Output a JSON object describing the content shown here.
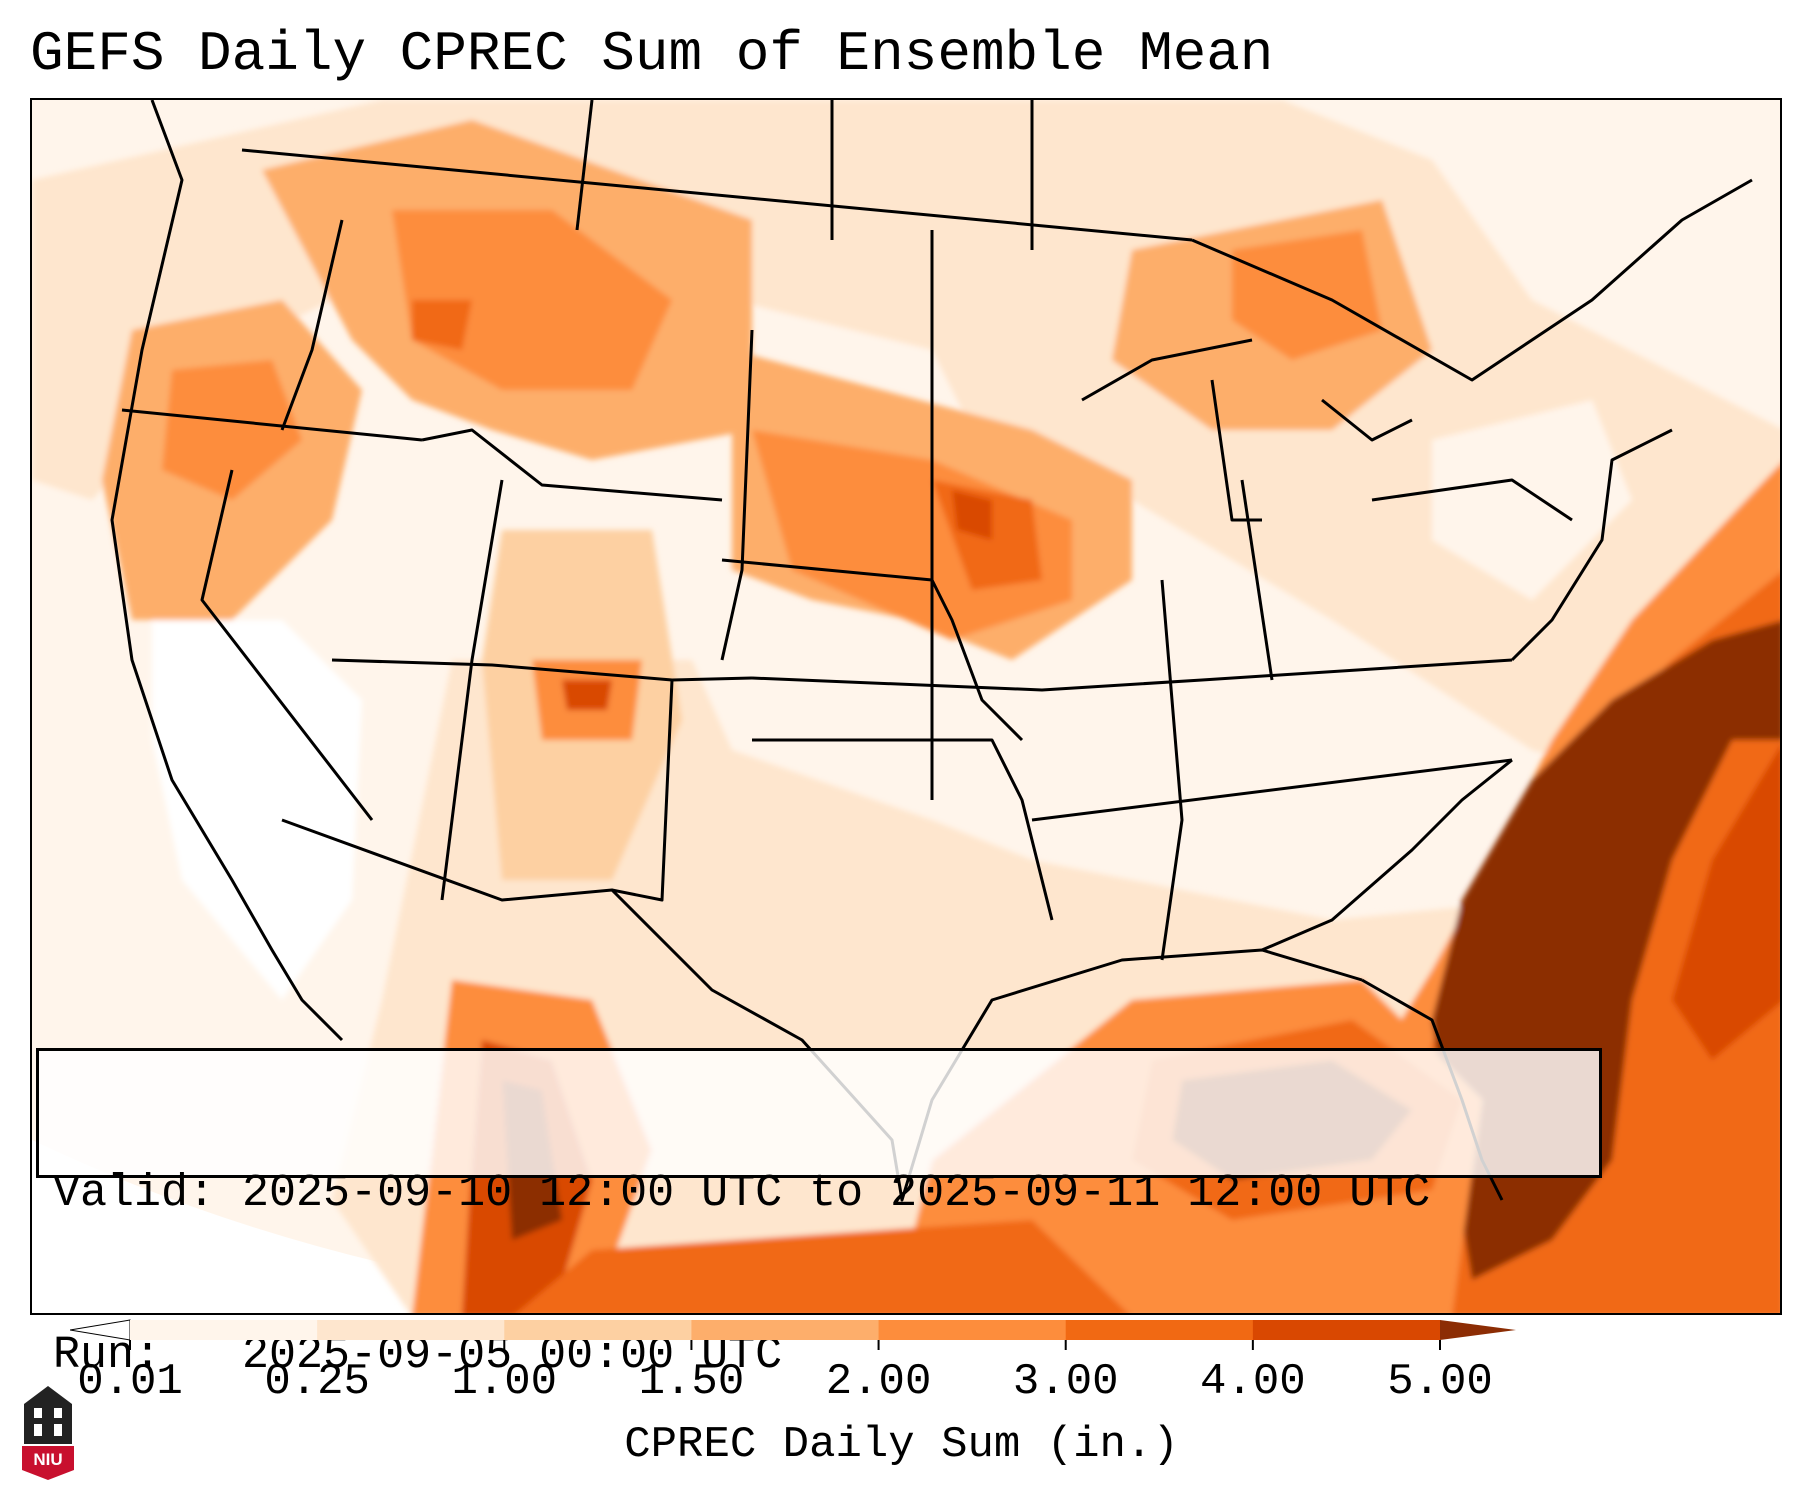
{
  "title": "GEFS Daily CPREC Sum of Ensemble Mean",
  "info": {
    "valid_label": "Valid:",
    "valid_value": "2025-09-10 12:00 UTC to 2025-09-11 12:00 UTC",
    "run_label": "Run:",
    "run_value": "2025-09-05 00:00 UTC"
  },
  "colorbar": {
    "label": "CPREC Daily Sum (in.)",
    "ticks": [
      "0.01",
      "0.25",
      "1.00",
      "1.50",
      "2.00",
      "3.00",
      "4.00",
      "5.00"
    ],
    "bins": [
      {
        "from": 0.01,
        "to": 0.25,
        "color": "#fff5eb"
      },
      {
        "from": 0.25,
        "to": 1.0,
        "color": "#fee6ce"
      },
      {
        "from": 1.0,
        "to": 1.5,
        "color": "#fdd0a2"
      },
      {
        "from": 1.5,
        "to": 2.0,
        "color": "#fdae6b"
      },
      {
        "from": 2.0,
        "to": 3.0,
        "color": "#fd8d3c"
      },
      {
        "from": 3.0,
        "to": 4.0,
        "color": "#f16913"
      },
      {
        "from": 4.0,
        "to": 5.0,
        "color": "#d94801"
      }
    ],
    "under_color": "#ffffff",
    "over_color": "#8c2d04"
  },
  "logo": {
    "text": "NIU",
    "color": "#c8102e"
  }
}
